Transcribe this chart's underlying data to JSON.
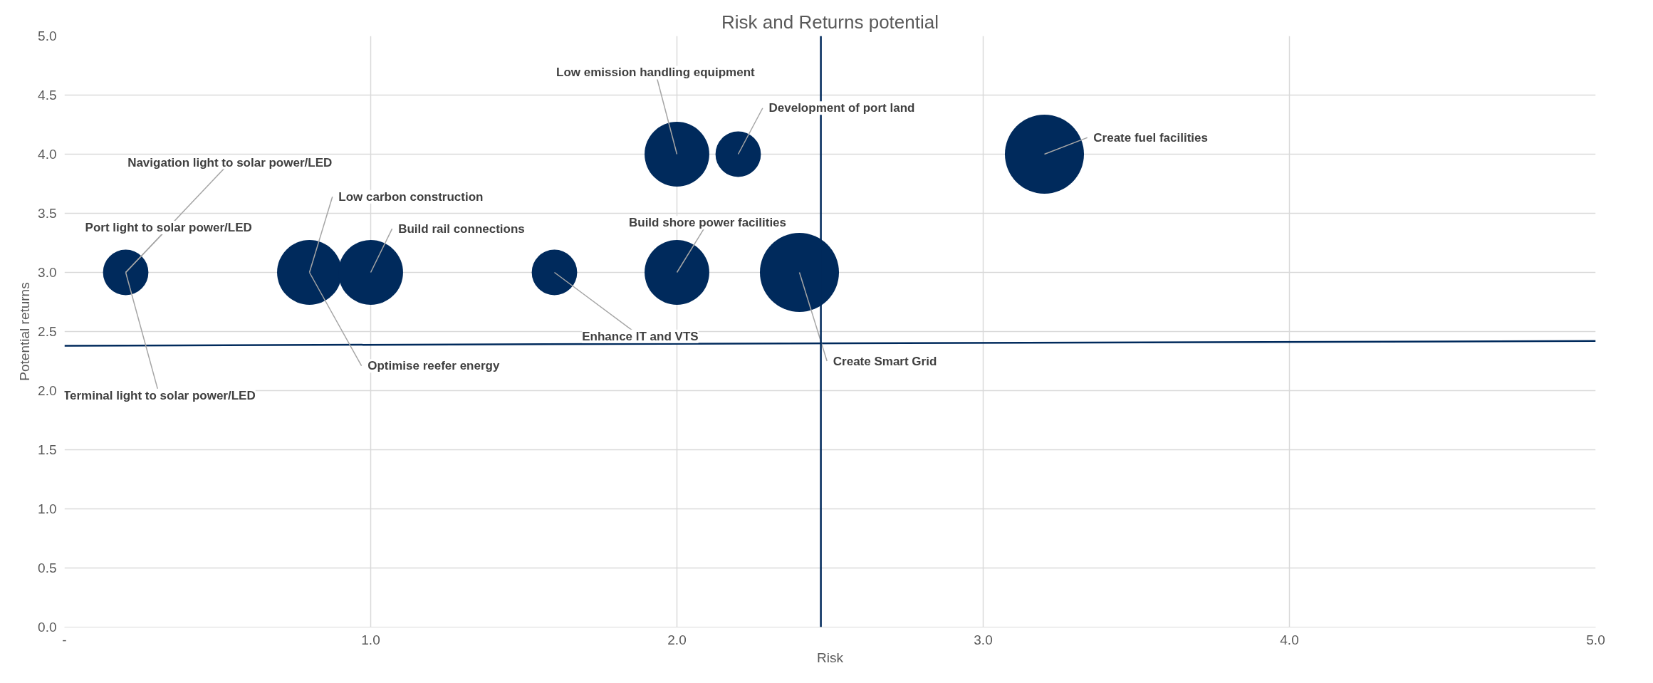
{
  "chart_data": {
    "type": "bubble",
    "title": "Risk and Returns potential",
    "xlabel": "Risk",
    "ylabel": "Potential returns",
    "xlim": [
      0,
      5
    ],
    "ylim": [
      0,
      5
    ],
    "xticks": [
      {
        "value": 0,
        "label": "-"
      },
      {
        "value": 1,
        "label": "1.0"
      },
      {
        "value": 2,
        "label": "2.0"
      },
      {
        "value": 3,
        "label": "3.0"
      },
      {
        "value": 4,
        "label": "4.0"
      },
      {
        "value": 5,
        "label": "5.0"
      }
    ],
    "yticks": [
      {
        "value": 0,
        "label": "0.0"
      },
      {
        "value": 0.5,
        "label": "0.5"
      },
      {
        "value": 1,
        "label": "1.0"
      },
      {
        "value": 1.5,
        "label": "1.5"
      },
      {
        "value": 2,
        "label": "2.0"
      },
      {
        "value": 2.5,
        "label": "2.5"
      },
      {
        "value": 3,
        "label": "3.0"
      },
      {
        "value": 3.5,
        "label": "3.5"
      },
      {
        "value": 4,
        "label": "4.0"
      },
      {
        "value": 4.5,
        "label": "4.5"
      },
      {
        "value": 5,
        "label": "5.0"
      }
    ],
    "grid": true,
    "series": [
      {
        "color": "#002a5c",
        "x": [
          0.2,
          0.8,
          1.0,
          1.6,
          2.0,
          2.0,
          2.2,
          3.2,
          2.4
        ],
        "values": [
          3.0,
          3.0,
          3.0,
          3.0,
          3.0,
          4.0,
          4.0,
          4.0,
          3.0
        ],
        "sizes": [
          0.33,
          0.67,
          0.67,
          0.33,
          0.67,
          0.67,
          0.33,
          1,
          1
        ]
      },
      {
        "type": "line",
        "color": "#002a5c",
        "x": [
          0,
          5
        ],
        "values": [
          2.38,
          2.42
        ]
      }
    ],
    "annotations": [
      {
        "text": "Navigation light to solar power/LED",
        "x": 0.2,
        "y": 3.0
      },
      {
        "text": "Port light to solar power/LED",
        "x": 0.2,
        "y": 3.0
      },
      {
        "text": "Terminal light to solar power/LED",
        "x": 0.2,
        "y": 3.0
      },
      {
        "text": "Low carbon construction",
        "x": 0.8,
        "y": 3.0
      },
      {
        "text": "Optimise reefer energy",
        "x": 0.8,
        "y": 3.0
      },
      {
        "text": "Build rail connections",
        "x": 1.0,
        "y": 3.0
      },
      {
        "text": "Enhance IT and VTS",
        "x": 1.6,
        "y": 3.0
      },
      {
        "text": "Build shore power facilities",
        "x": 2.0,
        "y": 3.0
      },
      {
        "text": "Low emission handling equipment",
        "x": 2.0,
        "y": 4.0
      },
      {
        "text": "Development of port land",
        "x": 2.2,
        "y": 4.0
      },
      {
        "text": "Create fuel facilities",
        "x": 3.2,
        "y": 4.0
      },
      {
        "text": "Create Smart Grid",
        "x": 2.4,
        "y": 3.0
      }
    ],
    "ref_lines": [
      {
        "axis": "x",
        "value": 2.47,
        "color": "#002a5c"
      }
    ]
  }
}
